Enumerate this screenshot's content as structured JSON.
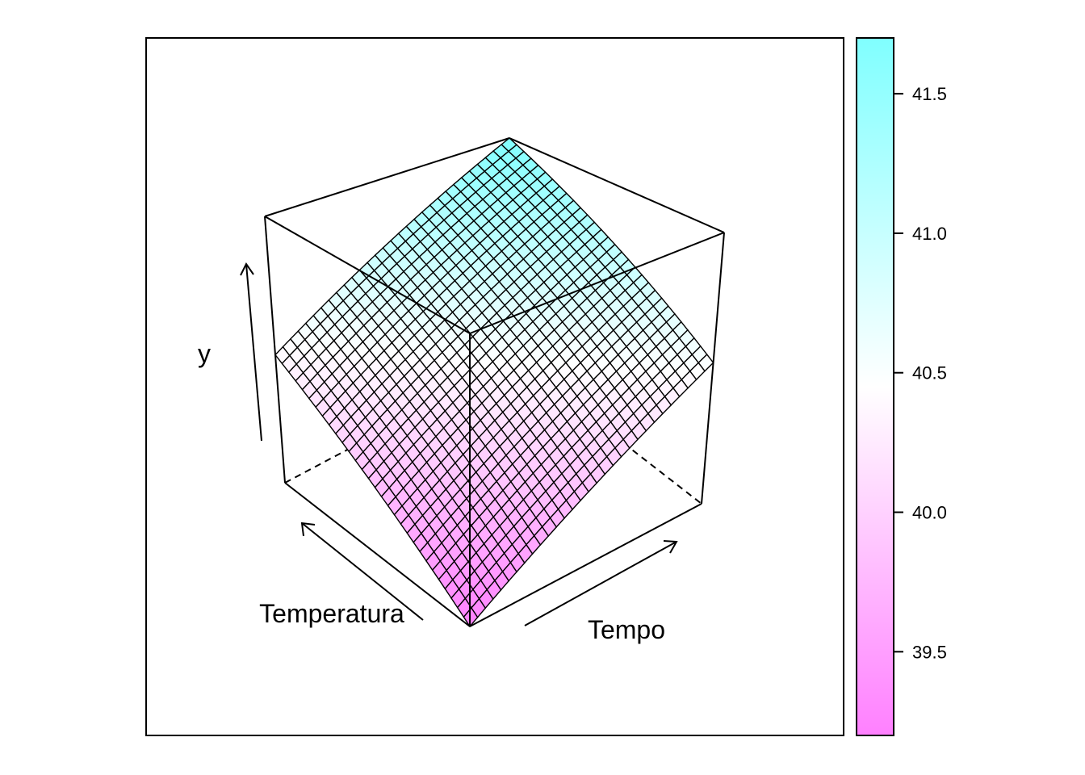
{
  "chart_data": {
    "type": "surface",
    "xlabel": "Tempo",
    "ylabel": "Temperatura",
    "zlabel": "y",
    "grid_resolution": 30,
    "surface": {
      "kind": "plane",
      "z_at_corners": {
        "front": 39.2,
        "left": 40.4,
        "right": 40.5,
        "back": 41.7
      }
    },
    "colorkey": {
      "min": 39.2,
      "max": 41.7,
      "low_color": "#ff80ff",
      "mid_color": "#ffffff",
      "high_color": "#80ffff",
      "ticks": [
        39.5,
        40.0,
        40.5,
        41.0,
        41.5
      ],
      "tick_labels": [
        "39.5",
        "40.0",
        "40.5",
        "41.0",
        "41.5"
      ]
    }
  }
}
